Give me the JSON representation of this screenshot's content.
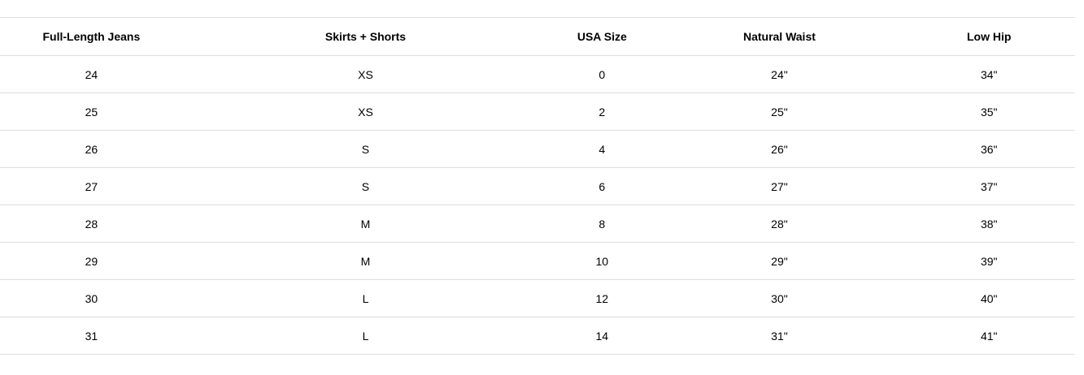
{
  "colors": {
    "background": "#ffffff",
    "text": "#000000",
    "row_divider": "#dedede"
  },
  "size_chart": {
    "columns": [
      {
        "label": "Full-Length Jeans"
      },
      {
        "label": "Skirts + Shorts"
      },
      {
        "label": "USA Size"
      },
      {
        "label": "Natural Waist"
      },
      {
        "label": "Low Hip"
      }
    ],
    "rows": [
      [
        "24",
        "XS",
        "0",
        "24\"",
        "34\""
      ],
      [
        "25",
        "XS",
        "2",
        "25\"",
        "35\""
      ],
      [
        "26",
        "S",
        "4",
        "26\"",
        "36\""
      ],
      [
        "27",
        "S",
        "6",
        "27\"",
        "37\""
      ],
      [
        "28",
        "M",
        "8",
        "28\"",
        "38\""
      ],
      [
        "29",
        "M",
        "10",
        "29\"",
        "39\""
      ],
      [
        "30",
        "L",
        "12",
        "30\"",
        "40\""
      ],
      [
        "31",
        "L",
        "14",
        "31\"",
        "41\""
      ]
    ]
  }
}
